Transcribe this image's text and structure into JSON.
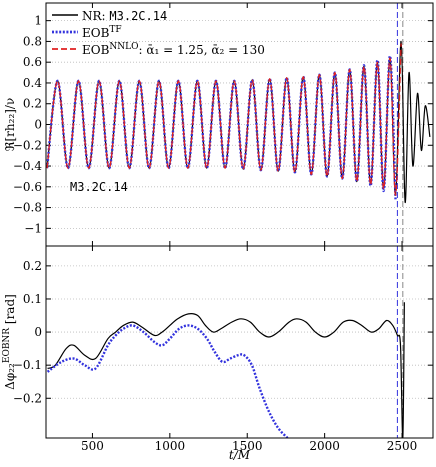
{
  "chart_data": [
    {
      "type": "line",
      "ylabel": "ℜ[rh₂₂]/ν",
      "annotation": "M3.2C.14",
      "x": [
        207,
        275,
        342,
        410,
        476,
        543,
        608,
        674,
        738,
        803,
        866,
        930,
        992,
        1055,
        1116,
        1178,
        1238,
        1298,
        1357,
        1416,
        1474,
        1532,
        1588,
        1645,
        1700,
        1755,
        1808,
        1862,
        1914,
        1966,
        2016,
        2066,
        2114,
        2162,
        2208,
        2254,
        2297,
        2341,
        2381,
        2422,
        2458,
        2494,
        2520,
        2545,
        2570,
        2600,
        2625,
        2650,
        2680
      ],
      "series": [
        {
          "name": "NR: ",
          "name_mono": "M3.2C.14",
          "color": "#000000",
          "style": "solid",
          "values": [
            -0.42,
            0.42,
            -0.42,
            0.42,
            -0.42,
            0.42,
            -0.42,
            0.42,
            -0.42,
            0.42,
            -0.42,
            0.42,
            -0.42,
            0.42,
            -0.42,
            0.42,
            -0.42,
            0.42,
            -0.42,
            0.42,
            -0.43,
            0.43,
            -0.44,
            0.44,
            -0.45,
            0.45,
            -0.46,
            0.46,
            -0.48,
            0.48,
            -0.5,
            0.5,
            -0.52,
            0.53,
            -0.55,
            0.56,
            -0.58,
            0.6,
            -0.62,
            0.64,
            -0.68,
            0.8,
            -0.75,
            0.5,
            -0.4,
            0.3,
            -0.25,
            0.18,
            -0.12
          ]
        },
        {
          "name": "EOB",
          "sup": "TF",
          "color": "#3333dd",
          "style": "dotted",
          "values": [
            -0.42,
            0.42,
            -0.42,
            0.42,
            -0.42,
            0.42,
            -0.42,
            0.42,
            -0.42,
            0.42,
            -0.42,
            0.42,
            -0.42,
            0.42,
            -0.42,
            0.42,
            -0.42,
            0.42,
            -0.42,
            0.42,
            -0.43,
            0.43,
            -0.44,
            0.44,
            -0.45,
            0.45,
            -0.46,
            0.46,
            -0.48,
            0.48,
            -0.5,
            0.5,
            -0.52,
            0.53,
            -0.55,
            0.57,
            -0.59,
            0.62,
            -0.64,
            0.66,
            -0.72,
            null,
            null,
            null,
            null,
            null,
            null,
            null,
            null
          ]
        },
        {
          "name": "EOB",
          "sup": "NNLO",
          "suffix": ": ᾱ₁ = 1.25, ᾱ₂ = 130",
          "color": "#e02020",
          "style": "dashed",
          "values": [
            -0.42,
            0.42,
            -0.42,
            0.42,
            -0.42,
            0.42,
            -0.42,
            0.42,
            -0.42,
            0.42,
            -0.42,
            0.42,
            -0.42,
            0.42,
            -0.42,
            0.42,
            -0.42,
            0.42,
            -0.42,
            0.42,
            -0.43,
            0.43,
            -0.44,
            0.44,
            -0.45,
            0.45,
            -0.46,
            0.46,
            -0.48,
            0.48,
            -0.5,
            0.5,
            -0.52,
            0.53,
            -0.55,
            0.56,
            -0.58,
            0.6,
            -0.62,
            0.64,
            -0.68,
            0.78,
            null,
            null,
            null,
            null,
            null,
            null,
            null
          ]
        }
      ],
      "vlines": [
        {
          "x": 2470,
          "color": "#3333dd"
        },
        {
          "x": 2505,
          "color": "#888888"
        }
      ],
      "xlim": [
        200,
        2700
      ],
      "xticks": [
        500,
        1000,
        1500,
        2000,
        2500
      ],
      "show_xtick_labels": false,
      "ylim": [
        -1.17,
        1.17
      ],
      "yticks": [
        {
          "value": -1,
          "label": "−1"
        },
        {
          "value": -0.8,
          "label": "−0.8"
        },
        {
          "value": -0.6,
          "label": "−0.6"
        },
        {
          "value": -0.4,
          "label": "−0.4"
        },
        {
          "value": -0.2,
          "label": "−0.2"
        },
        0,
        0.2,
        0.4,
        0.6,
        0.8,
        1
      ],
      "grid": true,
      "legend": "upper left"
    },
    {
      "type": "line",
      "xlabel": "t/M",
      "ylabel": "Δφ₂₂",
      "ylabel_sup": "EOBNR",
      "ylabel_suffix": " [rad]",
      "series": [
        {
          "color": "#000000",
          "style": "solid",
          "x": [
            210,
            260,
            330,
            380,
            450,
            520,
            600,
            650,
            700,
            760,
            820,
            900,
            950,
            1000,
            1050,
            1120,
            1180,
            1230,
            1280,
            1330,
            1400,
            1460,
            1520,
            1580,
            1640,
            1700,
            1770,
            1820,
            1880,
            1940,
            2000,
            2060,
            2120,
            2180,
            2240,
            2300,
            2350,
            2400,
            2440,
            2470,
            2490,
            2505,
            2515
          ],
          "values": [
            -0.11,
            -0.1,
            -0.05,
            -0.04,
            -0.07,
            -0.08,
            -0.02,
            0,
            0.02,
            0.03,
            0.015,
            -0.01,
            0,
            0.02,
            0.04,
            0.055,
            0.05,
            0.02,
            0,
            0.01,
            0.03,
            0.04,
            0.03,
            0,
            -0.015,
            0,
            0.03,
            0.04,
            0.03,
            0,
            -0.015,
            0,
            0.03,
            0.035,
            0.02,
            0,
            0.01,
            0.035,
            0.02,
            -0.01,
            -0.04,
            -0.32,
            0.09
          ]
        },
        {
          "color": "#3333dd",
          "style": "dotted",
          "x": [
            210,
            300,
            380,
            450,
            520,
            600,
            650,
            700,
            760,
            830,
            900,
            950,
            1000,
            1060,
            1120,
            1180,
            1240,
            1290,
            1340,
            1390,
            1440,
            1480,
            1530,
            1580,
            1640,
            1700,
            1760
          ],
          "values": [
            -0.12,
            -0.09,
            -0.08,
            -0.1,
            -0.11,
            -0.04,
            -0.01,
            0.01,
            0.02,
            0,
            -0.03,
            -0.04,
            -0.02,
            0.01,
            0.02,
            0.01,
            -0.02,
            -0.06,
            -0.09,
            -0.08,
            -0.07,
            -0.07,
            -0.1,
            -0.17,
            -0.24,
            -0.29,
            -0.32
          ]
        }
      ],
      "vlines": [
        {
          "x": 2470,
          "color": "#3333dd"
        },
        {
          "x": 2505,
          "color": "#888888"
        }
      ],
      "xlim": [
        200,
        2700
      ],
      "xticks": [
        500,
        1000,
        1500,
        2000,
        2500
      ],
      "show_xtick_labels": true,
      "ylim": [
        -0.32,
        0.26
      ],
      "yticks": [
        {
          "value": -0.2,
          "label": "−0.2"
        },
        {
          "value": -0.1,
          "label": "−0.1"
        },
        0,
        0.1,
        0.2
      ],
      "grid": true
    }
  ]
}
